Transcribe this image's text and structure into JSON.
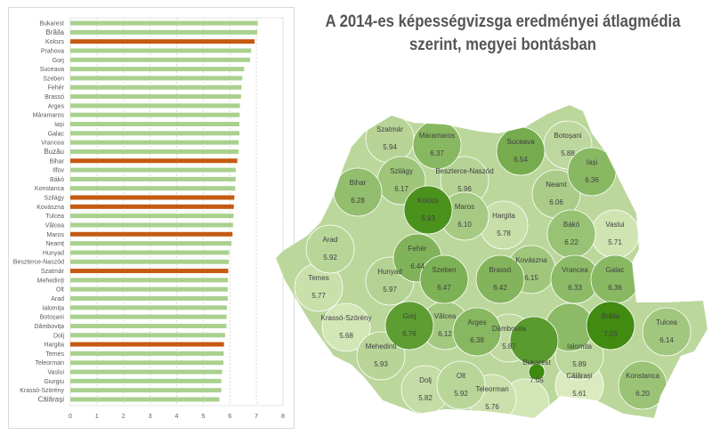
{
  "title": "A 2014-es képességvizsga eredményei átlagmédia szerint, megyei bontásban",
  "colors": {
    "bar": "#a9d18e",
    "highlight": "#c55a11",
    "map_low": "#dcebc0",
    "map_high": "#3e8a0e",
    "border": "#ffffff"
  },
  "chart_data": {
    "type": "bar",
    "orientation": "horizontal",
    "xlim": [
      0,
      8
    ],
    "xticks": [
      "0",
      "1",
      "2",
      "3",
      "4",
      "5",
      "6",
      "7",
      "8"
    ],
    "grid": true,
    "categories": [
      "Bukarest",
      "Brăila",
      "Kolozs",
      "Prahova",
      "Gorj",
      "Suceava",
      "Szeben",
      "Fehér",
      "Brassó",
      "Arges",
      "Máramaros",
      "Iași",
      "Galac",
      "Vrancea",
      "Buzău",
      "Bihar",
      "Ilfov",
      "Bákó",
      "Konstanca",
      "Szilágy",
      "Kovászna",
      "Tulcea",
      "Vâlcea",
      "Maros",
      "Neamț",
      "Hunyad",
      "Beszterce-Naszód",
      "Szatmár",
      "Mehedinți",
      "Olt",
      "Arad",
      "Ialomița",
      "Botoșani",
      "Dâmbovița",
      "Dolj",
      "Hargita",
      "Temes",
      "Teleorman",
      "Vaslui",
      "Giurgiu",
      "Krassó-Szörény",
      "Călărași"
    ],
    "values": [
      7.05,
      7.03,
      6.93,
      6.8,
      6.76,
      6.54,
      6.47,
      6.44,
      6.42,
      6.38,
      6.37,
      6.36,
      6.36,
      6.33,
      6.33,
      6.28,
      6.22,
      6.22,
      6.2,
      6.17,
      6.15,
      6.14,
      6.12,
      6.1,
      6.06,
      5.97,
      5.96,
      5.94,
      5.93,
      5.92,
      5.92,
      5.89,
      5.88,
      5.87,
      5.82,
      5.78,
      5.77,
      5.76,
      5.71,
      5.68,
      5.68,
      5.61
    ],
    "highlighted": [
      "Kolozs",
      "Bihar",
      "Szilágy",
      "Kovászna",
      "Maros",
      "Szatmár",
      "Hargita"
    ]
  },
  "map": {
    "labels": [
      {
        "name": "Szatmár",
        "value": "5.94"
      },
      {
        "name": "Máramaros",
        "value": "6.37"
      },
      {
        "name": "Suceava",
        "value": "6.54"
      },
      {
        "name": "Botoșani",
        "value": "5.88"
      },
      {
        "name": "Iași",
        "value": "6.36"
      },
      {
        "name": "Szilágy",
        "value": "6.17"
      },
      {
        "name": "Beszterce-Naszód",
        "value": "5.96"
      },
      {
        "name": "Bihar",
        "value": "6.28"
      },
      {
        "name": "Kolozs",
        "value": "6.93"
      },
      {
        "name": "Maros",
        "value": "6.10"
      },
      {
        "name": "Hargita",
        "value": "5.78"
      },
      {
        "name": "Neamt",
        "value": "6.06"
      },
      {
        "name": "Bákó",
        "value": "6.22"
      },
      {
        "name": "Vaslui",
        "value": "5.71"
      },
      {
        "name": "Arad",
        "value": "5.92"
      },
      {
        "name": "Fehér",
        "value": "6.44"
      },
      {
        "name": "Szeben",
        "value": "6.47"
      },
      {
        "name": "Brassó",
        "value": "6.42"
      },
      {
        "name": "Kovászna",
        "value": "6.15"
      },
      {
        "name": "Vrancea",
        "value": "6.33"
      },
      {
        "name": "Galac",
        "value": "6.36"
      },
      {
        "name": "Temes",
        "value": "5.77"
      },
      {
        "name": "Hunyad",
        "value": "5.97"
      },
      {
        "name": "Krassó-Szörény",
        "value": "5.68"
      },
      {
        "name": "Gorj",
        "value": "6.76"
      },
      {
        "name": "Vâlcea",
        "value": "6.12"
      },
      {
        "name": "Arges",
        "value": "6.38"
      },
      {
        "name": "Dâmbovita",
        "value": "5.87"
      },
      {
        "name": "Brăila",
        "value": "7.03"
      },
      {
        "name": "Tulcea",
        "value": "6.14"
      },
      {
        "name": "Mehedinti",
        "value": "5.93"
      },
      {
        "name": "Ialomita",
        "value": "5.89"
      },
      {
        "name": "Bukarest",
        "value": "7.05"
      },
      {
        "name": "Călărași",
        "value": "5.61"
      },
      {
        "name": "Konstanca",
        "value": "6.20"
      },
      {
        "name": "Dolj",
        "value": "5.82"
      },
      {
        "name": "Olt",
        "value": "5.92"
      },
      {
        "name": "Teleorman",
        "value": "5.76"
      }
    ],
    "unlabeled": [
      {
        "name": "Prahova",
        "value": 6.8
      },
      {
        "name": "Buzău",
        "value": 6.33
      },
      {
        "name": "Giurgiu",
        "value": 5.68
      },
      {
        "name": "Ilfov",
        "value": 6.22
      }
    ]
  }
}
